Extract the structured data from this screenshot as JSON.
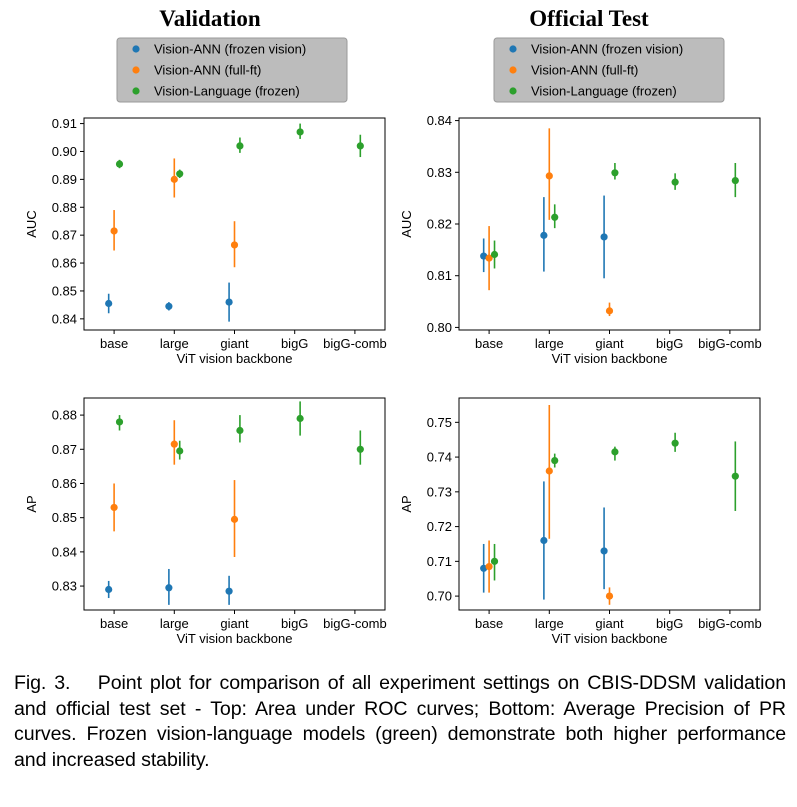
{
  "figure": {
    "column_titles": [
      "Validation",
      "Official Test"
    ],
    "legend_items": [
      {
        "label": "Vision-ANN (frozen vision)",
        "color": "#1f77b4"
      },
      {
        "label": "Vision-ANN (full-ft)",
        "color": "#ff7f0e"
      },
      {
        "label": "Vision-Language (frozen)",
        "color": "#2ca02c"
      }
    ],
    "caption": "Fig. 3.  Point plot for comparison of all experiment settings on CBIS-DDSM validation and official test set - Top: Area under ROC curves; Bottom: Average Precision of PR curves. Frozen vision-language models (green) demonstrate both higher performance and increased stability."
  },
  "chart_data": [
    {
      "type": "scatter",
      "title": "Validation",
      "xlabel": "ViT vision backbone",
      "ylabel": "AUC",
      "categories": [
        "base",
        "large",
        "giant",
        "bigG",
        "bigG-comb"
      ],
      "ylim": [
        0.836,
        0.912
      ],
      "yticks": [
        0.84,
        0.85,
        0.86,
        0.87,
        0.88,
        0.89,
        0.9,
        0.91
      ],
      "ytick_labels": [
        "0.84",
        "0.85",
        "0.86",
        "0.87",
        "0.88",
        "0.89",
        "0.90",
        "0.91"
      ],
      "legend": "top",
      "series": [
        {
          "name": "Vision-ANN (frozen vision)",
          "color": "#1f77b4",
          "values": [
            0.8455,
            0.8445,
            0.846,
            null,
            null
          ],
          "err_low": [
            0.842,
            0.843,
            0.839,
            null,
            null
          ],
          "err_high": [
            0.849,
            0.846,
            0.853,
            null,
            null
          ]
        },
        {
          "name": "Vision-ANN (full-ft)",
          "color": "#ff7f0e",
          "values": [
            0.8715,
            0.89,
            0.8665,
            null,
            null
          ],
          "err_low": [
            0.8645,
            0.8835,
            0.8585,
            null,
            null
          ],
          "err_high": [
            0.879,
            0.8975,
            0.875,
            null,
            null
          ]
        },
        {
          "name": "Vision-Language (frozen)",
          "color": "#2ca02c",
          "values": [
            0.8955,
            0.892,
            0.902,
            0.907,
            0.902
          ],
          "err_low": [
            0.894,
            0.8905,
            0.8995,
            0.9045,
            0.898
          ],
          "err_high": [
            0.897,
            0.8935,
            0.905,
            0.91,
            0.906
          ]
        }
      ]
    },
    {
      "type": "scatter",
      "title": "Official Test",
      "xlabel": "ViT vision backbone",
      "ylabel": "AUC",
      "categories": [
        "base",
        "large",
        "giant",
        "bigG",
        "bigG-comb"
      ],
      "ylim": [
        0.7995,
        0.8405
      ],
      "yticks": [
        0.8,
        0.81,
        0.82,
        0.83,
        0.84
      ],
      "ytick_labels": [
        "0.80",
        "0.81",
        "0.82",
        "0.83",
        "0.84"
      ],
      "legend": "top",
      "series": [
        {
          "name": "Vision-ANN (frozen vision)",
          "color": "#1f77b4",
          "values": [
            0.8138,
            0.8178,
            0.8175,
            null,
            null
          ],
          "err_low": [
            0.8107,
            0.8108,
            0.8095,
            null,
            null
          ],
          "err_high": [
            0.8172,
            0.8252,
            0.8255,
            null,
            null
          ]
        },
        {
          "name": "Vision-ANN (full-ft)",
          "color": "#ff7f0e",
          "values": [
            0.8134,
            0.8293,
            0.8032,
            null,
            null
          ],
          "err_low": [
            0.8072,
            0.8208,
            0.8022,
            null,
            null
          ],
          "err_high": [
            0.8196,
            0.8385,
            0.8048,
            null,
            null
          ]
        },
        {
          "name": "Vision-Language (frozen)",
          "color": "#2ca02c",
          "values": [
            0.8141,
            0.8213,
            0.8299,
            0.8281,
            0.8284
          ],
          "err_low": [
            0.8114,
            0.8192,
            0.8286,
            0.8266,
            0.8252
          ],
          "err_high": [
            0.8168,
            0.8238,
            0.8318,
            0.8298,
            0.8318
          ]
        }
      ]
    },
    {
      "type": "scatter",
      "title": "",
      "xlabel": "ViT vision backbone",
      "ylabel": "AP",
      "categories": [
        "base",
        "large",
        "giant",
        "bigG",
        "bigG-comb"
      ],
      "ylim": [
        0.823,
        0.885
      ],
      "yticks": [
        0.83,
        0.84,
        0.85,
        0.86,
        0.87,
        0.88
      ],
      "ytick_labels": [
        "0.83",
        "0.84",
        "0.85",
        "0.86",
        "0.87",
        "0.88"
      ],
      "legend": "none",
      "series": [
        {
          "name": "Vision-ANN (frozen vision)",
          "color": "#1f77b4",
          "values": [
            0.829,
            0.8295,
            0.8285,
            null,
            null
          ],
          "err_low": [
            0.8265,
            0.8245,
            0.8245,
            null,
            null
          ],
          "err_high": [
            0.8315,
            0.835,
            0.833,
            null,
            null
          ]
        },
        {
          "name": "Vision-ANN (full-ft)",
          "color": "#ff7f0e",
          "values": [
            0.853,
            0.8715,
            0.8495,
            null,
            null
          ],
          "err_low": [
            0.846,
            0.8655,
            0.8385,
            null,
            null
          ],
          "err_high": [
            0.86,
            0.8785,
            0.861,
            null,
            null
          ]
        },
        {
          "name": "Vision-Language (frozen)",
          "color": "#2ca02c",
          "values": [
            0.878,
            0.8695,
            0.8755,
            0.879,
            0.87
          ],
          "err_low": [
            0.8755,
            0.867,
            0.872,
            0.874,
            0.8655
          ],
          "err_high": [
            0.88,
            0.8725,
            0.88,
            0.884,
            0.8755
          ]
        }
      ]
    },
    {
      "type": "scatter",
      "title": "",
      "xlabel": "ViT vision backbone",
      "ylabel": "AP",
      "categories": [
        "base",
        "large",
        "giant",
        "bigG",
        "bigG-comb"
      ],
      "ylim": [
        0.696,
        0.757
      ],
      "yticks": [
        0.7,
        0.71,
        0.72,
        0.73,
        0.74,
        0.75
      ],
      "ytick_labels": [
        "0.70",
        "0.71",
        "0.72",
        "0.73",
        "0.74",
        "0.75"
      ],
      "legend": "none",
      "series": [
        {
          "name": "Vision-ANN (frozen vision)",
          "color": "#1f77b4",
          "values": [
            0.708,
            0.716,
            0.713,
            null,
            null
          ],
          "err_low": [
            0.701,
            0.699,
            0.702,
            null,
            null
          ],
          "err_high": [
            0.715,
            0.733,
            0.7255,
            null,
            null
          ]
        },
        {
          "name": "Vision-ANN (full-ft)",
          "color": "#ff7f0e",
          "values": [
            0.7085,
            0.736,
            0.7,
            null,
            null
          ],
          "err_low": [
            0.701,
            0.7165,
            0.6975,
            null,
            null
          ],
          "err_high": [
            0.716,
            0.755,
            0.7025,
            null,
            null
          ]
        },
        {
          "name": "Vision-Language (frozen)",
          "color": "#2ca02c",
          "values": [
            0.71,
            0.739,
            0.7415,
            0.744,
            0.7345
          ],
          "err_low": [
            0.7045,
            0.737,
            0.739,
            0.7415,
            0.7245
          ],
          "err_high": [
            0.715,
            0.741,
            0.743,
            0.747,
            0.7445
          ]
        }
      ]
    }
  ]
}
